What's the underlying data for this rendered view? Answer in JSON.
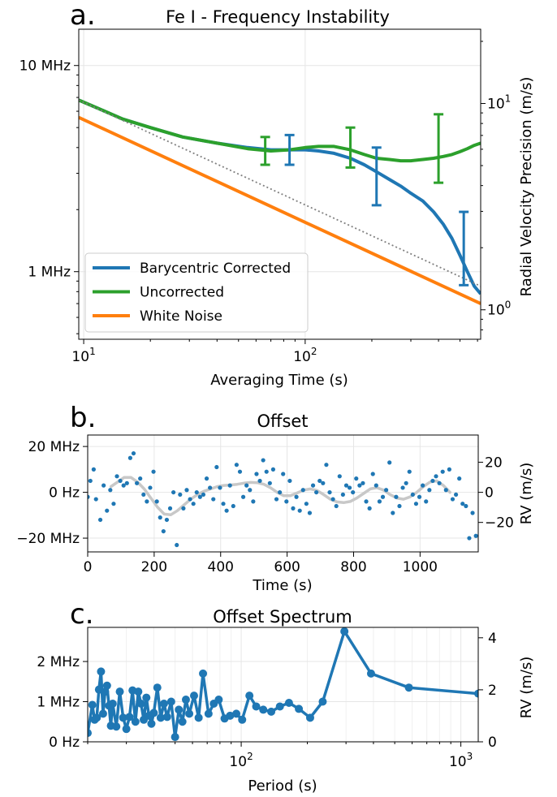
{
  "chart_data": [
    {
      "panel": "a.",
      "type": "line",
      "title": "Fe I - Frequency Instability",
      "xlabel": "Averaging Time (s)",
      "ylabel": "",
      "y2label": "Radial Velocity Precision (m/s)",
      "xscale": "log",
      "yscale": "log",
      "xlim": [
        9.5,
        620
      ],
      "ylim": [
        0.47,
        15
      ],
      "y2lim": [
        0.72,
        22.9
      ],
      "xticks": [
        {
          "v": 10,
          "base": "10",
          "exp": "1"
        },
        {
          "v": 100,
          "base": "10",
          "exp": "2"
        }
      ],
      "yticks": [
        {
          "v": 1,
          "label": "1 MHz"
        },
        {
          "v": 10,
          "label": "10 MHz"
        }
      ],
      "y2ticks": [
        {
          "v": 1,
          "base": "10",
          "exp": "0"
        },
        {
          "v": 10,
          "base": "10",
          "exp": "1"
        }
      ],
      "grid": true,
      "legend_position": "lower-left",
      "series": [
        {
          "name": "Barycentric Corrected",
          "color": "#1f77b4",
          "x": [
            9.5,
            12,
            15,
            20,
            28,
            40,
            55,
            70,
            85,
            100,
            115,
            135,
            160,
            185,
            210,
            240,
            270,
            300,
            340,
            380,
            420,
            460,
            500,
            540,
            580,
            620
          ],
          "y": [
            6.8,
            6.1,
            5.5,
            5.0,
            4.5,
            4.2,
            4.0,
            3.9,
            3.9,
            3.9,
            3.85,
            3.75,
            3.55,
            3.3,
            3.05,
            2.8,
            2.6,
            2.4,
            2.2,
            1.95,
            1.7,
            1.45,
            1.2,
            1.0,
            0.85,
            0.78
          ]
        },
        {
          "name": "Uncorrected",
          "color": "#2ca02c",
          "x": [
            9.5,
            12,
            15,
            20,
            28,
            40,
            55,
            70,
            85,
            100,
            115,
            135,
            160,
            185,
            210,
            240,
            270,
            300,
            340,
            380,
            420,
            460,
            500,
            540,
            580,
            620
          ],
          "y": [
            6.8,
            6.1,
            5.5,
            5.0,
            4.5,
            4.2,
            3.95,
            3.85,
            3.9,
            4.0,
            4.05,
            4.05,
            3.9,
            3.7,
            3.55,
            3.5,
            3.45,
            3.45,
            3.5,
            3.55,
            3.62,
            3.7,
            3.82,
            3.95,
            4.1,
            4.2
          ]
        },
        {
          "name": "White Noise",
          "color": "#ff7f0e",
          "x": [
            9.5,
            620
          ],
          "y": [
            5.6,
            0.7
          ]
        },
        {
          "name": "",
          "color": "#808080",
          "style": "dotted",
          "x": [
            9.5,
            620
          ],
          "y": [
            6.8,
            0.85
          ]
        }
      ],
      "errorbars": [
        {
          "series": "Uncorrected",
          "color": "#2ca02c",
          "x": 66,
          "y": 3.85,
          "ylow": 3.3,
          "yhigh": 4.5
        },
        {
          "series": "Barycentric Corrected",
          "color": "#1f77b4",
          "x": 85,
          "y": 3.9,
          "ylow": 3.3,
          "yhigh": 4.6
        },
        {
          "series": "Uncorrected",
          "color": "#2ca02c",
          "x": 160,
          "y": 3.9,
          "ylow": 3.2,
          "yhigh": 5.0
        },
        {
          "series": "Barycentric Corrected",
          "color": "#1f77b4",
          "x": 210,
          "y": 3.05,
          "ylow": 2.1,
          "yhigh": 4.0
        },
        {
          "series": "Uncorrected",
          "color": "#2ca02c",
          "x": 400,
          "y": 3.6,
          "ylow": 2.7,
          "yhigh": 5.8
        },
        {
          "series": "Barycentric Corrected",
          "color": "#1f77b4",
          "x": 520,
          "y": 1.1,
          "ylow": 0.86,
          "yhigh": 1.95
        }
      ]
    },
    {
      "panel": "b.",
      "type": "scatter",
      "title": "Offset",
      "xlabel": "Time (s)",
      "ylabel": "",
      "y2label": "RV (m/s)",
      "xlim": [
        0,
        1175
      ],
      "ylim": [
        -26,
        25
      ],
      "y2lim": [
        -39.6,
        38.1
      ],
      "xticks": [
        0,
        200,
        400,
        600,
        800,
        1000
      ],
      "yticks": [
        {
          "v": -20,
          "label": "−20 MHz"
        },
        {
          "v": 0,
          "label": "0 Hz"
        },
        {
          "v": 20,
          "label": "20 MHz"
        }
      ],
      "y2ticks": [
        {
          "v": -20,
          "label": "−20"
        },
        {
          "v": 0,
          "label": "0"
        },
        {
          "v": 20,
          "label": "20"
        }
      ],
      "grid": true,
      "series": [
        {
          "name": "",
          "color": "#1f77b4",
          "x": [
            0,
            8,
            18,
            25,
            38,
            48,
            58,
            68,
            78,
            88,
            98,
            108,
            118,
            128,
            138,
            148,
            158,
            168,
            178,
            188,
            198,
            208,
            218,
            228,
            238,
            248,
            258,
            268,
            278,
            288,
            298,
            308,
            318,
            328,
            338,
            348,
            358,
            368,
            378,
            388,
            398,
            408,
            418,
            428,
            438,
            448,
            458,
            468,
            478,
            488,
            498,
            508,
            518,
            528,
            538,
            548,
            558,
            568,
            578,
            588,
            598,
            608,
            618,
            628,
            638,
            648,
            658,
            668,
            678,
            688,
            698,
            708,
            718,
            728,
            738,
            748,
            758,
            768,
            778,
            788,
            798,
            808,
            818,
            828,
            838,
            848,
            858,
            868,
            878,
            888,
            898,
            908,
            918,
            928,
            938,
            948,
            958,
            968,
            978,
            988,
            998,
            1008,
            1018,
            1028,
            1038,
            1048,
            1058,
            1068,
            1078,
            1088,
            1098,
            1108,
            1118,
            1128,
            1138,
            1148,
            1158,
            1168
          ],
          "y": [
            -2,
            5,
            10,
            -3,
            -12,
            3,
            -8,
            1,
            -5,
            7,
            5,
            3,
            4,
            15,
            17,
            4,
            6,
            -1,
            -4,
            2,
            9,
            -4,
            -11,
            -17,
            -12,
            -7,
            0,
            -23,
            -1,
            -7,
            1,
            -3,
            -5,
            0,
            -2,
            -1,
            6,
            2,
            -3,
            11,
            2,
            -5,
            -8,
            3,
            -6,
            12,
            9,
            -2,
            3,
            1,
            -4,
            8,
            5,
            14,
            9,
            4,
            10,
            -3,
            0,
            8,
            -4,
            5,
            -7,
            -2,
            -8,
            1,
            -5,
            -9,
            3,
            0,
            5,
            4,
            12,
            0,
            -3,
            -6,
            7,
            -1,
            3,
            2,
            0,
            6,
            3,
            4,
            -4,
            -7,
            8,
            3,
            -4,
            -2,
            1,
            13,
            -9,
            -2,
            -6,
            2,
            4,
            9,
            -1,
            -5,
            -2,
            3,
            -4,
            1,
            5,
            7,
            4,
            9,
            1,
            10,
            -3,
            -1,
            6,
            -5,
            -6,
            -20,
            -9,
            -19
          ]
        },
        {
          "name": "",
          "color": "#c8c8c8",
          "style": "smooth",
          "x": [
            70,
            90,
            110,
            130,
            150,
            170,
            190,
            210,
            230,
            250,
            270,
            290,
            310,
            330,
            350,
            370,
            390,
            410,
            430,
            450,
            470,
            490,
            510,
            530,
            550,
            570,
            590,
            610,
            630,
            650,
            670,
            690,
            710,
            730,
            750,
            770,
            790,
            810,
            830,
            850,
            870,
            890,
            910,
            930,
            950,
            970,
            990,
            1010,
            1030,
            1050,
            1070,
            1090
          ],
          "y": [
            2.5,
            4.5,
            6.5,
            6.5,
            4.5,
            1.5,
            -2.5,
            -6.5,
            -9.5,
            -9.8,
            -8,
            -5.5,
            -3,
            -1,
            0.5,
            1.5,
            2.5,
            3,
            3.2,
            3.5,
            4,
            4.3,
            4.2,
            3.5,
            2,
            0,
            -1.5,
            -1.5,
            -0.3,
            1,
            1.5,
            0.8,
            -1,
            -3,
            -4.2,
            -4.5,
            -4,
            -2.5,
            -0.5,
            1.5,
            2,
            1,
            -1,
            -2.5,
            -3,
            -2,
            0,
            2.5,
            4.5,
            5,
            3,
            0
          ]
        }
      ]
    },
    {
      "panel": "c.",
      "type": "line",
      "title": "Offset Spectrum",
      "xlabel": "Period (s)",
      "ylabel": "",
      "y2label": "RV (m/s)",
      "xscale": "log",
      "xlim": [
        20,
        1200
      ],
      "ylim": [
        0,
        2.85
      ],
      "y2lim": [
        0,
        4.4
      ],
      "xticks": [
        {
          "v": 100,
          "base": "10",
          "exp": "2"
        },
        {
          "v": 1000,
          "base": "10",
          "exp": "3"
        }
      ],
      "yticks": [
        {
          "v": 0,
          "label": "0 Hz"
        },
        {
          "v": 1,
          "label": "1 MHz"
        },
        {
          "v": 2,
          "label": "2 MHz"
        }
      ],
      "y2ticks": [
        {
          "v": 0,
          "label": "0"
        },
        {
          "v": 2,
          "label": "2"
        },
        {
          "v": 4,
          "label": "4"
        }
      ],
      "grid": true,
      "series": [
        {
          "name": "",
          "color": "#1f77b4",
          "x": [
            20,
            21,
            21.5,
            22,
            22.5,
            23,
            23.5,
            24,
            24.5,
            25,
            25.5,
            26,
            27,
            28,
            29,
            30,
            31,
            32,
            33,
            34,
            35,
            36,
            37,
            38,
            39,
            40,
            41.5,
            43,
            44.5,
            46,
            48,
            50,
            52,
            54,
            56,
            58,
            61,
            64,
            67,
            71,
            75,
            79,
            84,
            89,
            95,
            101,
            109,
            117,
            126,
            137,
            150,
            165,
            183,
            206,
            235,
            295,
            390,
            580,
            1200
          ],
          "y": [
            0.22,
            0.92,
            0.55,
            0.6,
            1.3,
            1.75,
            0.7,
            1.25,
            1.4,
            0.9,
            0.4,
            0.95,
            0.38,
            1.25,
            0.6,
            0.32,
            0.62,
            1.28,
            0.5,
            1.25,
            0.95,
            0.55,
            1.1,
            0.65,
            0.45,
            0.72,
            1.35,
            0.6,
            0.95,
            0.62,
            1.0,
            0.12,
            0.8,
            0.5,
            1.05,
            0.7,
            1.15,
            0.6,
            1.7,
            0.7,
            0.95,
            1.05,
            0.58,
            0.65,
            0.7,
            0.55,
            1.15,
            0.88,
            0.8,
            0.75,
            0.88,
            0.97,
            0.82,
            0.6,
            1.0,
            2.75,
            1.7,
            1.35,
            1.2
          ]
        }
      ]
    }
  ]
}
